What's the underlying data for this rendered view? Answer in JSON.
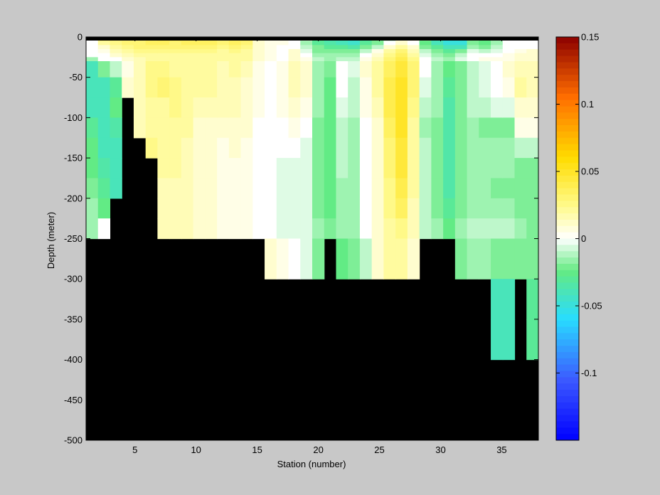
{
  "chart_data": [
    {
      "type": "heatmap",
      "xlabel": "Station (number)",
      "ylabel": "Depth (meter)",
      "xlim": [
        1,
        38
      ],
      "ylim": [
        -500,
        0
      ],
      "xticks": [
        5,
        10,
        15,
        20,
        25,
        30,
        35
      ],
      "yticks": [
        0,
        -50,
        -100,
        -150,
        -200,
        -250,
        -300,
        -350,
        -400,
        -450,
        -500
      ],
      "grid": false,
      "depth_bins": [
        [
          -5,
          0
        ],
        [
          -10,
          -5
        ],
        [
          -15,
          -10
        ],
        [
          -20,
          -15
        ],
        [
          -25,
          -20
        ],
        [
          -30,
          -25
        ],
        [
          -50,
          -30
        ],
        [
          -75,
          -50
        ],
        [
          -100,
          -75
        ],
        [
          -125,
          -100
        ],
        [
          -150,
          -125
        ],
        [
          -175,
          -150
        ],
        [
          -200,
          -175
        ],
        [
          -225,
          -200
        ],
        [
          -250,
          -225
        ],
        [
          -300,
          -250
        ],
        [
          -350,
          -300
        ],
        [
          -400,
          -350
        ],
        [
          -500,
          -400
        ]
      ],
      "bottom_depth": [
        -250,
        -250,
        -200,
        -75,
        -125,
        -150,
        -250,
        -250,
        -250,
        -250,
        -250,
        -250,
        -250,
        -250,
        -250,
        -300,
        -300,
        -300,
        -300,
        -300,
        -250,
        -300,
        -300,
        -300,
        -300,
        -300,
        -300,
        -300,
        -250,
        -250,
        -250,
        -300,
        -300,
        -300,
        -400,
        -400,
        -300,
        -400
      ],
      "values": [
        [
          0,
          0.03,
          0.03,
          0.03,
          0.03,
          0.035,
          0.04,
          0.04,
          0.035,
          0.035,
          0.035,
          0.03,
          0.035,
          0.035,
          0.01,
          0.005,
          0.005,
          0.0,
          -0.01,
          -0.03,
          -0.04,
          -0.04,
          -0.045,
          -0.035,
          -0.02,
          -0.01,
          0.01,
          0.005,
          -0.02,
          -0.04,
          -0.05,
          -0.05,
          -0.02,
          -0.025,
          -0.015,
          0.0,
          0.0,
          0.0
        ],
        [
          0,
          0.02,
          0.025,
          0.03,
          0.03,
          0.035,
          0.035,
          0.03,
          0.035,
          0.035,
          0.035,
          0.03,
          0.035,
          0.03,
          0.01,
          0.005,
          0.005,
          0.0,
          -0.015,
          -0.03,
          -0.035,
          -0.04,
          -0.045,
          -0.03,
          -0.02,
          0.0,
          0.01,
          0.0,
          -0.025,
          -0.04,
          -0.05,
          -0.05,
          -0.02,
          -0.025,
          -0.015,
          0.0,
          0.0,
          0.0
        ],
        [
          0,
          0.01,
          0.02,
          0.025,
          0.03,
          0.03,
          0.03,
          0.03,
          0.03,
          0.03,
          0.03,
          0.025,
          0.03,
          0.025,
          0.01,
          0.005,
          0.0,
          0.0,
          -0.01,
          -0.02,
          -0.03,
          -0.03,
          -0.035,
          -0.02,
          -0.01,
          0.01,
          0.02,
          0.01,
          -0.02,
          -0.03,
          -0.04,
          -0.04,
          -0.015,
          -0.02,
          -0.01,
          0.0,
          0.0,
          0.0
        ],
        [
          0,
          0.005,
          0.015,
          0.02,
          0.025,
          0.025,
          0.025,
          0.025,
          0.025,
          0.025,
          0.025,
          0.02,
          0.025,
          0.02,
          0.01,
          0.005,
          0.0,
          0.01,
          -0.005,
          -0.02,
          -0.02,
          -0.02,
          -0.02,
          -0.01,
          0.005,
          0.02,
          0.03,
          0.015,
          -0.01,
          -0.02,
          -0.03,
          -0.02,
          -0.005,
          -0.01,
          -0.005,
          0.0,
          0.005,
          0.01
        ],
        [
          0,
          0.0,
          0.01,
          0.015,
          0.02,
          0.02,
          0.02,
          0.02,
          0.02,
          0.02,
          0.02,
          0.02,
          0.02,
          0.02,
          0.01,
          0.005,
          0.0,
          0.01,
          0.0,
          -0.015,
          -0.015,
          -0.015,
          -0.015,
          0.0,
          0.01,
          0.025,
          0.035,
          0.02,
          -0.005,
          -0.015,
          -0.02,
          -0.01,
          0.0,
          0.0,
          0.0,
          0.005,
          0.01,
          0.01
        ],
        [
          -0.015,
          0.0,
          0.0,
          0.01,
          0.015,
          0.02,
          0.02,
          0.02,
          0.02,
          0.02,
          0.02,
          0.02,
          0.02,
          0.02,
          0.01,
          0.005,
          0.0,
          0.01,
          0.005,
          -0.01,
          -0.015,
          -0.01,
          -0.01,
          0.005,
          0.015,
          0.03,
          0.04,
          0.025,
          0.0,
          -0.01,
          -0.015,
          -0.005,
          0.0,
          0.005,
          0.005,
          0.005,
          0.01,
          0.01
        ],
        [
          -0.04,
          -0.02,
          -0.01,
          0.005,
          0.015,
          0.025,
          0.025,
          0.02,
          0.02,
          0.02,
          0.02,
          0.015,
          0.02,
          0.015,
          0.005,
          0.0,
          0.005,
          0.015,
          0.01,
          -0.015,
          -0.02,
          0.0,
          -0.005,
          0.01,
          0.02,
          0.035,
          0.045,
          0.03,
          0.0,
          -0.015,
          -0.025,
          -0.02,
          -0.01,
          -0.005,
          0.0,
          0.01,
          0.015,
          0.015
        ],
        [
          -0.04,
          -0.04,
          -0.03,
          0.01,
          0.015,
          0.025,
          0.03,
          0.025,
          0.02,
          0.02,
          0.02,
          0.015,
          0.015,
          0.01,
          0.005,
          0.0,
          0.005,
          0.015,
          0.01,
          -0.015,
          -0.025,
          0.0,
          -0.01,
          0.005,
          0.02,
          0.04,
          0.05,
          0.03,
          -0.005,
          -0.015,
          -0.03,
          -0.02,
          -0.01,
          -0.005,
          0.0,
          0.005,
          0.02,
          0.015
        ],
        [
          -0.04,
          -0.04,
          -0.025,
          0.0,
          0.015,
          0.02,
          0.02,
          0.025,
          0.02,
          0.015,
          0.015,
          0.015,
          0.015,
          0.01,
          0.005,
          0.0,
          0.005,
          0.01,
          0.005,
          -0.015,
          -0.025,
          -0.005,
          -0.01,
          0.005,
          0.015,
          0.04,
          0.05,
          0.025,
          -0.01,
          -0.015,
          -0.035,
          -0.02,
          -0.01,
          -0.01,
          -0.005,
          -0.005,
          0.01,
          0.01
        ],
        [
          -0.03,
          -0.04,
          -0.035,
          0.0,
          0.015,
          0.02,
          0.02,
          0.02,
          0.02,
          0.01,
          0.01,
          0.01,
          0.01,
          0.01,
          0.0,
          0.0,
          0.0,
          0.005,
          0.0,
          -0.02,
          -0.025,
          -0.01,
          -0.015,
          0.0,
          0.01,
          0.035,
          0.05,
          0.02,
          -0.015,
          -0.02,
          -0.035,
          -0.02,
          -0.015,
          -0.02,
          -0.02,
          -0.02,
          0.005,
          0.005
        ],
        [
          -0.025,
          -0.04,
          -0.04,
          0.0,
          0.03,
          0.025,
          0.02,
          0.02,
          0.015,
          0.01,
          0.01,
          0.005,
          0.01,
          0.005,
          0.0,
          0.0,
          0.0,
          0.0,
          -0.005,
          -0.02,
          -0.025,
          -0.01,
          -0.015,
          0.0,
          0.01,
          0.03,
          0.045,
          0.02,
          -0.01,
          -0.02,
          -0.035,
          -0.02,
          -0.015,
          -0.015,
          -0.015,
          -0.015,
          -0.01,
          -0.01
        ],
        [
          -0.025,
          -0.035,
          -0.04,
          0.0,
          0.0,
          0.015,
          0.02,
          0.02,
          0.015,
          0.01,
          0.01,
          0.005,
          0.005,
          0.005,
          0.0,
          0.0,
          -0.005,
          -0.005,
          -0.005,
          -0.02,
          -0.025,
          -0.01,
          -0.015,
          0.0,
          0.01,
          0.03,
          0.045,
          0.02,
          -0.01,
          -0.02,
          -0.035,
          -0.02,
          -0.015,
          -0.015,
          -0.015,
          -0.015,
          -0.02,
          -0.02
        ],
        [
          -0.02,
          -0.03,
          -0.04,
          0.0,
          0.0,
          0.0,
          0.015,
          0.015,
          0.015,
          0.01,
          0.01,
          0.005,
          0.005,
          0.005,
          0.0,
          0.0,
          -0.005,
          -0.005,
          -0.005,
          -0.02,
          -0.025,
          -0.015,
          -0.015,
          0.0,
          0.01,
          0.025,
          0.04,
          0.02,
          -0.01,
          -0.02,
          -0.035,
          -0.02,
          -0.015,
          -0.015,
          -0.02,
          -0.02,
          -0.02,
          -0.02
        ],
        [
          -0.015,
          -0.025,
          0.0,
          0.0,
          0.0,
          0.0,
          0.015,
          0.015,
          0.015,
          0.01,
          0.01,
          0.005,
          0.005,
          0.005,
          0.0,
          0.0,
          -0.005,
          -0.005,
          -0.005,
          -0.02,
          -0.025,
          -0.015,
          -0.015,
          0.0,
          0.01,
          0.025,
          0.035,
          0.015,
          -0.01,
          -0.02,
          -0.03,
          -0.02,
          -0.015,
          -0.015,
          -0.015,
          -0.015,
          -0.02,
          -0.02
        ],
        [
          -0.015,
          0.0,
          0.0,
          0.0,
          0.0,
          0.0,
          0.015,
          0.015,
          0.015,
          0.01,
          0.01,
          0.005,
          0.005,
          0.005,
          0.0,
          0.0,
          -0.005,
          -0.005,
          -0.005,
          -0.015,
          -0.02,
          -0.015,
          -0.015,
          0.0,
          0.01,
          0.02,
          0.025,
          0.015,
          -0.01,
          -0.015,
          -0.025,
          -0.015,
          -0.01,
          -0.01,
          -0.01,
          -0.01,
          -0.015,
          -0.02
        ],
        [
          0.0,
          0.0,
          0.0,
          0.0,
          0.0,
          0.0,
          0.0,
          0.0,
          0.0,
          0.0,
          0.0,
          0.0,
          0.0,
          0.0,
          0.0,
          0.01,
          0.005,
          0.0,
          -0.005,
          -0.02,
          0.0,
          -0.025,
          -0.02,
          -0.01,
          0.01,
          0.02,
          0.02,
          0.01,
          0.0,
          0.0,
          0.0,
          -0.02,
          -0.015,
          -0.015,
          -0.02,
          -0.02,
          -0.02,
          -0.02
        ],
        [
          0.0,
          0.0,
          0.0,
          0.0,
          0.0,
          0.0,
          0.0,
          0.0,
          0.0,
          0.0,
          0.0,
          0.0,
          0.0,
          0.0,
          0.0,
          0.0,
          0.0,
          0.0,
          0.0,
          0.0,
          0.0,
          0.0,
          0.0,
          0.0,
          0.0,
          0.0,
          0.0,
          0.0,
          0.0,
          0.0,
          0.0,
          0.0,
          0.0,
          0.0,
          -0.04,
          -0.04,
          0.0,
          -0.03
        ],
        [
          0.0,
          0.0,
          0.0,
          0.0,
          0.0,
          0.0,
          0.0,
          0.0,
          0.0,
          0.0,
          0.0,
          0.0,
          0.0,
          0.0,
          0.0,
          0.0,
          0.0,
          0.0,
          0.0,
          0.0,
          0.0,
          0.0,
          0.0,
          0.0,
          0.0,
          0.0,
          0.0,
          0.0,
          0.0,
          0.0,
          0.0,
          0.0,
          0.0,
          0.0,
          -0.04,
          -0.04,
          0.0,
          -0.03
        ],
        [
          0.0,
          0.0,
          0.0,
          0.0,
          0.0,
          0.0,
          0.0,
          0.0,
          0.0,
          0.0,
          0.0,
          0.0,
          0.0,
          0.0,
          0.0,
          0.0,
          0.0,
          0.0,
          0.0,
          0.0,
          0.0,
          0.0,
          0.0,
          0.0,
          0.0,
          0.0,
          0.0,
          0.0,
          0.0,
          0.0,
          0.0,
          0.0,
          0.0,
          0.0,
          0.0,
          0.0,
          0.0,
          0.0
        ]
      ],
      "mask_color": "#000000",
      "background_color": "#c8c8c8",
      "colorbar": {
        "range": [
          -0.15,
          0.15
        ],
        "ticks": [
          0.15,
          0.1,
          0.05,
          0,
          -0.05,
          -0.1
        ],
        "tick_labels": [
          "0.15",
          "0.1",
          "0.05",
          "0",
          "-0.05",
          "-0.1"
        ],
        "steps": 64,
        "placement": "right"
      }
    }
  ]
}
